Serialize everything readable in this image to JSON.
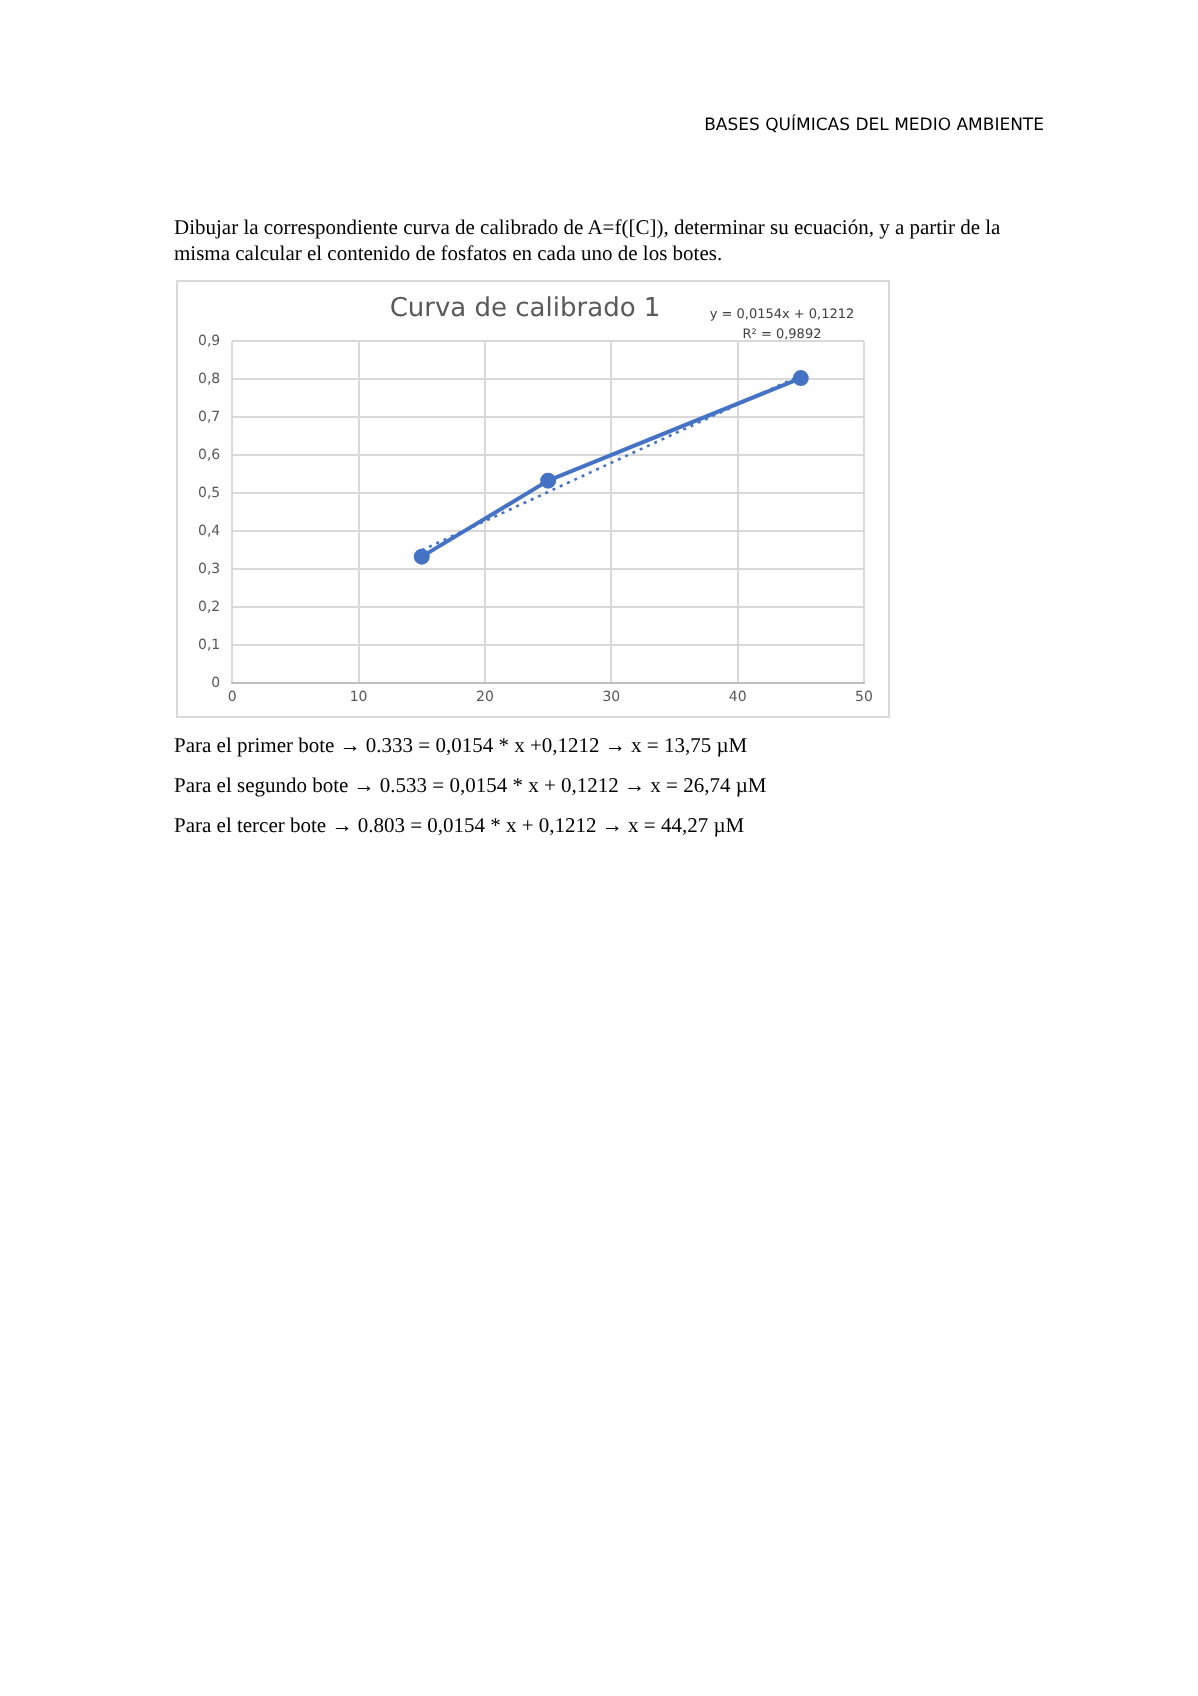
{
  "chart_data": {
    "type": "line",
    "title": "Curva de calibrado 1",
    "annotations": [
      "BASES QUÍMICAS DEL MEDIO AMBIENTE",
      "Dibujar la correspondiente curva de calibrado de A=f([C]), determinar su ecuación, y a partir de la misma calcular el contenido de fosfatos en cada uno de los botes.",
      "y = 0,0154x + 0,1212",
      "R² = 0,9892",
      "Para el primer bote → 0.333 = 0,0154 * x +0,1212 → x = 13,75 µM",
      "Para el segundo bote → 0.533 = 0,0154 * x + 0,1212 → x = 26,74 µM",
      "Para el tercer bote → 0.803 = 0,0154 * x + 0,1212 → x = 44,27 µM"
    ],
    "series": [
      {
        "color": "#4472c4",
        "x": [
          15,
          25,
          45
        ],
        "values": [
          0.333,
          0.533,
          0.803
        ],
        "marker": "circle",
        "line_style": "solid"
      },
      {
        "color": "#4472c4",
        "x": [
          15,
          45
        ],
        "values": [
          0.35,
          0.81
        ],
        "marker": "none",
        "line_style": "dotted"
      }
    ],
    "xlim": [
      0,
      50
    ],
    "xticks": [
      0,
      10,
      20,
      30,
      40,
      50
    ],
    "ylim": [
      0,
      0.9
    ],
    "yticks": [
      0,
      {
        "value": 0.1,
        "label": "0,1"
      },
      {
        "value": 0.2,
        "label": "0,2"
      },
      {
        "value": 0.3,
        "label": "0,3"
      },
      {
        "value": 0.4,
        "label": "0,4"
      },
      {
        "value": 0.5,
        "label": "0,5"
      },
      {
        "value": 0.6,
        "label": "0,6"
      },
      {
        "value": 0.7,
        "label": "0,7"
      },
      {
        "value": 0.8,
        "label": "0,8"
      },
      {
        "value": 0.9,
        "label": "0,9"
      }
    ],
    "grid": true,
    "legend": false
  }
}
